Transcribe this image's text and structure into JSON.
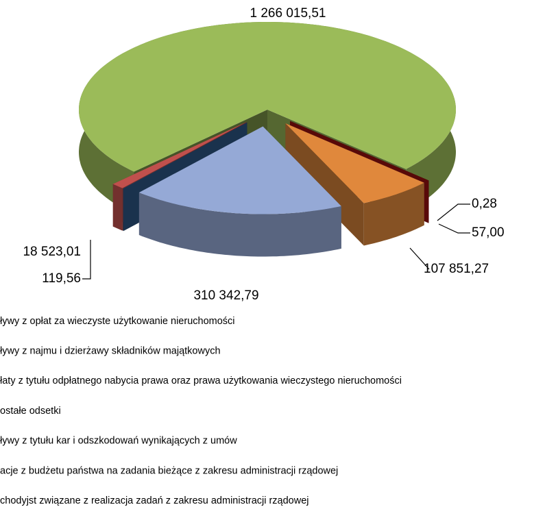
{
  "chart_data": {
    "type": "pie3d",
    "categories": [
      "ływy z opłat za wieczyste użytkowanie nieruchomości",
      "ływy z najmu i dzierżawy składników majątkowych",
      "łaty z tytułu odpłatnego nabycia prawa oraz prawa użytkowania wieczystego nieruchomości",
      "ostałe odsetki",
      "ływy z tytułu kar i odszkodowań wynikających z umów",
      "acje z budżetu państwa na zadania bieżące z zakresu administracji rządowej",
      "chodyjst związane z realizacja zadań z zakresu administracji rządowej"
    ],
    "values": [
      1266015.51,
      0.28,
      57.0,
      107851.27,
      310342.79,
      119.56,
      18523.01
    ],
    "value_labels": [
      "1 266 015,51",
      "0,28",
      "57,00",
      "107 851,27",
      "310 342,79",
      "119,56",
      "18 523,01"
    ],
    "colors": [
      "#9bbb59",
      "#7a0000",
      "#a01010",
      "#e0883c",
      "#95a9d6",
      "#2f5b8c",
      "#c0504d"
    ]
  }
}
